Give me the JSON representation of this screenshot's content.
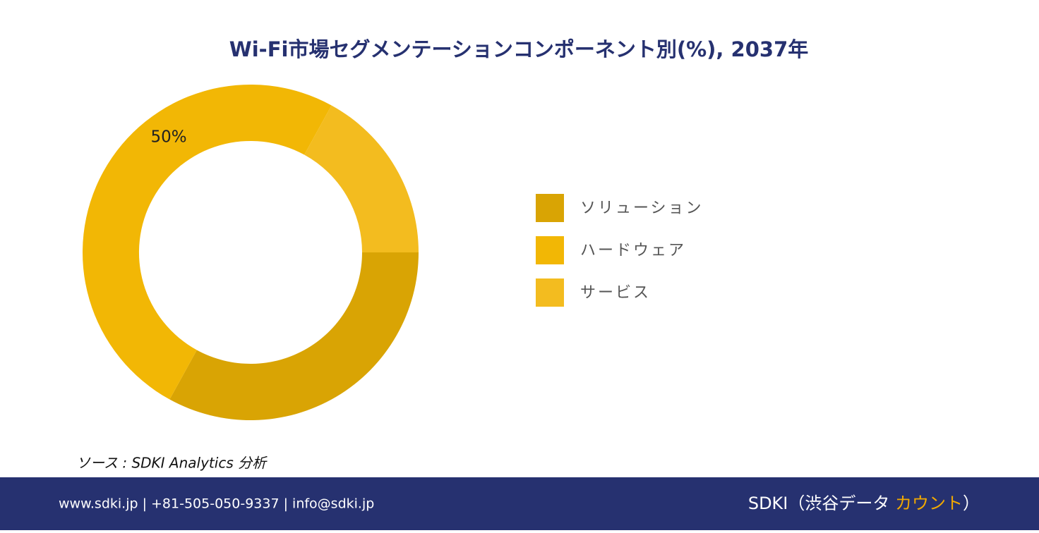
{
  "chart_data": {
    "type": "donut",
    "title": "Wi-Fi市場セグメンテーションコンポーネント別(%), 2037年",
    "categories": [
      "ソリューション",
      "ハードウェア",
      "サービス"
    ],
    "values": [
      33,
      50,
      17
    ],
    "value_labels": [
      null,
      "50%",
      null
    ],
    "colors": [
      "#D9A404",
      "#F2B705",
      "#F3BC1F"
    ]
  },
  "source": "ソース : SDKI Analytics 分析",
  "footer": {
    "contact": "www.sdki.jp | +81-505-050-9337 | info@sdki.jp",
    "brand": [
      "SDKI（渋谷データ ",
      "カウント",
      "）"
    ]
  }
}
